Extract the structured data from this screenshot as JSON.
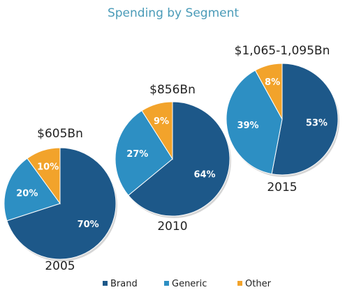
{
  "chart_data": {
    "type": "pie",
    "title": "Spending by Segment",
    "legend": [
      {
        "name": "Brand",
        "color": "#1d5889"
      },
      {
        "name": "Generic",
        "color": "#2d8fc3"
      },
      {
        "name": "Other",
        "color": "#f2a32b"
      }
    ],
    "legend_position": "bottom",
    "pies": [
      {
        "year": "2005",
        "total": "$605Bn",
        "slices": [
          {
            "name": "Brand",
            "value": 70,
            "label": "70%"
          },
          {
            "name": "Generic",
            "value": 20,
            "label": "20%"
          },
          {
            "name": "Other",
            "value": 10,
            "label": "10%"
          }
        ]
      },
      {
        "year": "2010",
        "total": "$856Bn",
        "slices": [
          {
            "name": "Brand",
            "value": 64,
            "label": "64%"
          },
          {
            "name": "Generic",
            "value": 27,
            "label": "27%"
          },
          {
            "name": "Other",
            "value": 9,
            "label": "9%"
          }
        ]
      },
      {
        "year": "2015",
        "total": "$1,065-1,095Bn",
        "slices": [
          {
            "name": "Brand",
            "value": 53,
            "label": "53%"
          },
          {
            "name": "Generic",
            "value": 39,
            "label": "39%"
          },
          {
            "name": "Other",
            "value": 8,
            "label": "8%"
          }
        ]
      }
    ]
  }
}
